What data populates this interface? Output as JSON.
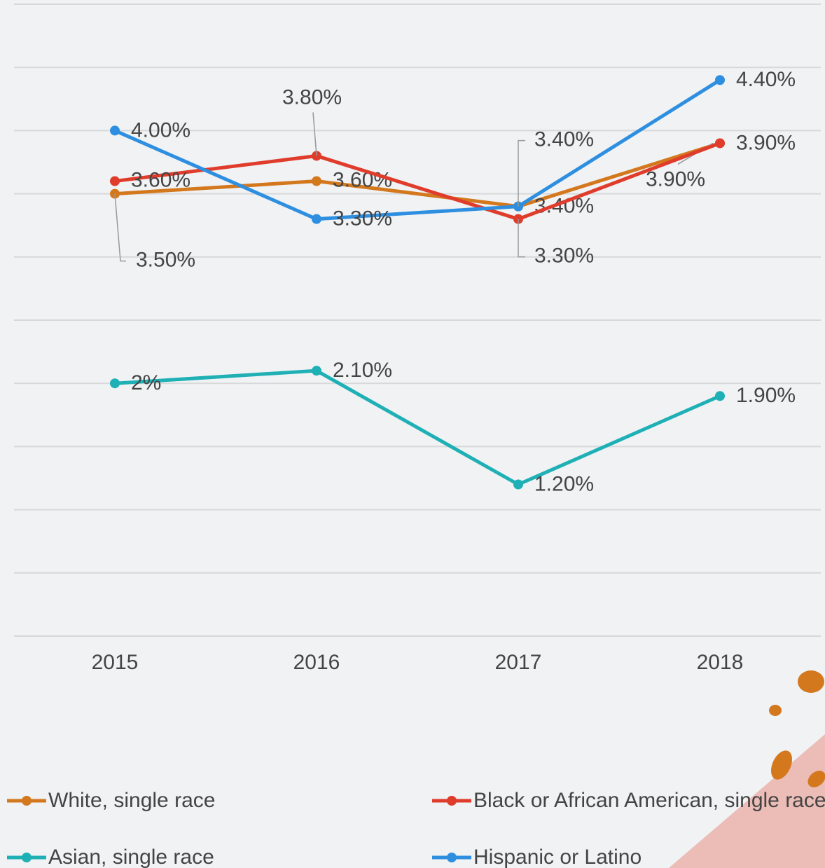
{
  "chart_data": {
    "type": "line",
    "categories": [
      "2015",
      "2016",
      "2017",
      "2018"
    ],
    "series": [
      {
        "name": "White, single race",
        "color": "#d4781e",
        "values": [
          3.5,
          3.6,
          3.4,
          3.9
        ],
        "value_labels": [
          "3.50%",
          "3.60%",
          "3.40%",
          "3.90%"
        ]
      },
      {
        "name": "Black or African American, single race",
        "color": "#e03c2c",
        "values": [
          3.6,
          3.8,
          3.3,
          3.9
        ],
        "value_labels": [
          "3.60%",
          "3.80%",
          "3.30%",
          "3.90%"
        ]
      },
      {
        "name": "Asian, single race",
        "color": "#1fb0b5",
        "values": [
          2,
          2.1,
          1.2,
          1.9
        ],
        "value_labels": [
          "2%",
          "2.10%",
          "1.20%",
          "1.90%"
        ]
      },
      {
        "name": "Hispanic or Latino",
        "color": "#2e8fe0",
        "values": [
          4.0,
          3.3,
          3.4,
          4.4
        ],
        "value_labels": [
          "4.00%",
          "3.30%",
          "3.40%",
          "4.40%"
        ]
      }
    ],
    "ylim": [
      0,
      5
    ],
    "yticks": [
      0,
      0.5,
      1,
      1.5,
      2,
      2.5,
      3,
      3.5,
      4,
      4.5,
      5
    ],
    "grid": true
  }
}
